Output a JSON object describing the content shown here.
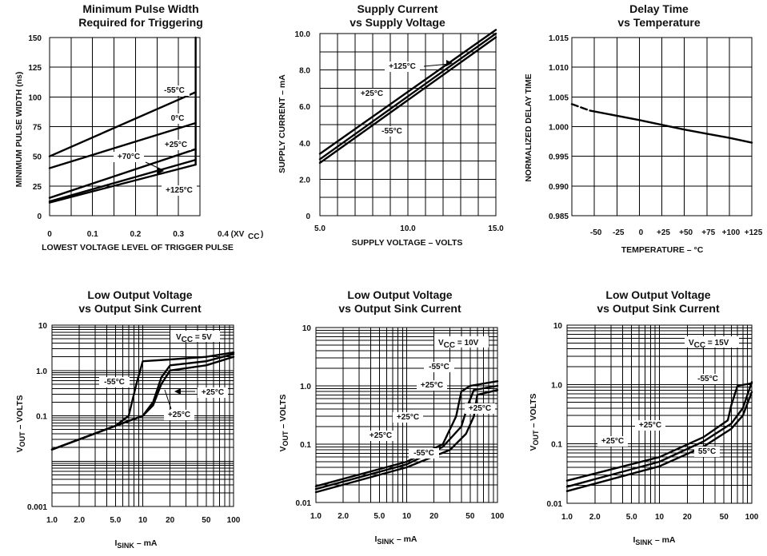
{
  "chart_data": [
    {
      "type": "line",
      "title": "Minimum Pulse Width\nRequired for Triggering",
      "xlabel": "LOWEST VOLTAGE LEVEL OF TRIGGER PULSE",
      "ylabel": "MINIMUM PULSE WIDTH (ns)",
      "xlim": [
        0,
        0.35
      ],
      "ylim": [
        0,
        150
      ],
      "x_ticks": [
        "0",
        "0.1",
        "0.2",
        "0.3",
        "0.4 (XVCC)"
      ],
      "y_ticks": [
        "0",
        "25",
        "50",
        "75",
        "100",
        "125",
        "150"
      ],
      "grid": true,
      "series": [
        {
          "name": "-55°C",
          "x": [
            0,
            0.34
          ],
          "y": [
            50,
            104
          ]
        },
        {
          "name": "0°C",
          "x": [
            0,
            0.34
          ],
          "y": [
            40,
            78
          ]
        },
        {
          "name": "+25°C",
          "x": [
            0,
            0.34
          ],
          "y": [
            15,
            56
          ]
        },
        {
          "name": "+70°C",
          "x": [
            0,
            0.34
          ],
          "y": [
            12,
            47
          ]
        },
        {
          "name": "+125°C",
          "x": [
            0,
            0.34
          ],
          "y": [
            11,
            43
          ]
        }
      ],
      "annotations": [
        "-55°C",
        "0°C",
        "+25°C",
        "+70°C",
        "+125°C"
      ]
    },
    {
      "type": "line",
      "title": "Supply Current\nvs Supply Voltage",
      "xlabel": "SUPPLY VOLTAGE – VOLTS",
      "ylabel": "SUPPLY CURRENT – mA",
      "xlim": [
        5,
        15
      ],
      "ylim": [
        0,
        10
      ],
      "x_ticks": [
        "5.0",
        "10.0",
        "15.0"
      ],
      "y_ticks": [
        "0",
        "2.0",
        "4.0",
        "6.0",
        "8.0",
        "10.0"
      ],
      "grid": true,
      "series": [
        {
          "name": "+125°C",
          "x": [
            5,
            15
          ],
          "y": [
            2.9,
            9.8
          ]
        },
        {
          "name": "+25°C",
          "x": [
            5,
            15
          ],
          "y": [
            3.1,
            10.0
          ]
        },
        {
          "name": "-55°C",
          "x": [
            5,
            15
          ],
          "y": [
            3.4,
            10.2
          ]
        }
      ],
      "annotations": [
        "+125°C",
        "+25°C",
        "-55°C"
      ]
    },
    {
      "type": "line",
      "title": "Delay Time\nvs Temperature",
      "xlabel": "TEMPERATURE – °C",
      "ylabel": "NORMALIZED DELAY TIME",
      "xlim": [
        -75,
        125
      ],
      "ylim": [
        0.985,
        1.015
      ],
      "x_ticks": [
        "-50",
        "-25",
        "0",
        "+25",
        "+50",
        "+75",
        "+100",
        "+125"
      ],
      "y_ticks": [
        "0.985",
        "0.990",
        "0.995",
        "1.000",
        "1.005",
        "1.010",
        "1.015"
      ],
      "grid": true,
      "series": [
        {
          "name": "",
          "x": [
            -75,
            -55,
            0,
            50,
            75,
            100,
            125
          ],
          "y": [
            1.0038,
            1.0027,
            1.0011,
            0.9995,
            0.9988,
            0.9981,
            0.9973
          ]
        }
      ]
    },
    {
      "type": "line",
      "title": "Low Output Voltage\nvs Output Sink Current",
      "xlabel": "ISINK – mA",
      "ylabel": "VOUT – VOLTS",
      "xscale": "log",
      "yscale": "log",
      "xlim": [
        1,
        100
      ],
      "ylim": [
        0.001,
        10
      ],
      "x_ticks": [
        "1.0",
        "2.0",
        "5.0",
        "10",
        "20",
        "50",
        "100"
      ],
      "y_ticks": [
        "0.001",
        "0.1",
        "1.0",
        "10"
      ],
      "grid": true,
      "annotations": [
        "VCC = 5V",
        "-55°C",
        "+25°C",
        "+25°C"
      ],
      "series": [
        {
          "name": "-55°C",
          "x": [
            1,
            5,
            7,
            8.5,
            10,
            20,
            50,
            100
          ],
          "y": [
            0.018,
            0.06,
            0.1,
            0.5,
            1.6,
            1.75,
            2.0,
            2.5
          ]
        },
        {
          "name": "+25°C",
          "x": [
            1,
            5,
            10,
            13,
            16,
            20,
            50,
            100
          ],
          "y": [
            0.018,
            0.06,
            0.1,
            0.2,
            0.7,
            1.3,
            1.6,
            2.3
          ]
        },
        {
          "name": "+25°C",
          "x": [
            1,
            5,
            10,
            13,
            16,
            20,
            50,
            100
          ],
          "y": [
            0.018,
            0.06,
            0.1,
            0.17,
            0.5,
            1.0,
            1.3,
            2.0
          ]
        }
      ]
    },
    {
      "type": "line",
      "title": "Low Output Voltage\nvs Output Sink Current",
      "xlabel": "ISINK – mA",
      "ylabel": "VOUT – VOLTS",
      "xscale": "log",
      "yscale": "log",
      "xlim": [
        1,
        100
      ],
      "ylim": [
        0.01,
        10
      ],
      "x_ticks": [
        "1.0",
        "2.0",
        "5.0",
        "10",
        "20",
        "50",
        "100"
      ],
      "y_ticks": [
        "0.01",
        "0.1",
        "1.0",
        "10"
      ],
      "grid": true,
      "annotations": [
        "VCC = 10V",
        "-55°C",
        "+25°C",
        "+25°C",
        "+25°C",
        "+25°C",
        "-55°C"
      ],
      "series": [
        {
          "name": "-55°C",
          "x": [
            1,
            10,
            25,
            35,
            40,
            50,
            100
          ],
          "y": [
            0.019,
            0.05,
            0.1,
            0.3,
            0.8,
            1.0,
            1.2
          ]
        },
        {
          "name": "+25°C",
          "x": [
            1,
            10,
            25,
            40,
            48,
            55,
            100
          ],
          "y": [
            0.017,
            0.045,
            0.09,
            0.2,
            0.5,
            0.85,
            1.0
          ]
        },
        {
          "name": "+25°C",
          "x": [
            1,
            10,
            30,
            45,
            55,
            60,
            100
          ],
          "y": [
            0.015,
            0.04,
            0.08,
            0.15,
            0.3,
            0.7,
            0.85
          ]
        }
      ]
    },
    {
      "type": "line",
      "title": "Low Output Voltage\nvs Output Sink Current",
      "xlabel": "ISINK – mA",
      "ylabel": "VOUT – VOLTS",
      "xscale": "log",
      "yscale": "log",
      "xlim": [
        1,
        100
      ],
      "ylim": [
        0.01,
        10
      ],
      "x_ticks": [
        "1.0",
        "2.0",
        "5.0",
        "10",
        "20",
        "50",
        "100"
      ],
      "y_ticks": [
        "0.01",
        "0.1",
        "1.0",
        "10"
      ],
      "grid": true,
      "annotations": [
        "VCC = 15V",
        "-55°C",
        "+25°C",
        "+25°C",
        "55°C"
      ],
      "series": [
        {
          "name": "-55°C",
          "x": [
            1,
            10,
            30,
            55,
            60,
            70,
            100
          ],
          "y": [
            0.024,
            0.06,
            0.13,
            0.25,
            0.45,
            0.95,
            1.05
          ]
        },
        {
          "name": "+25°C",
          "x": [
            1,
            10,
            30,
            60,
            80,
            100
          ],
          "y": [
            0.019,
            0.05,
            0.11,
            0.22,
            0.4,
            1.1
          ]
        },
        {
          "name": "55°C",
          "x": [
            1,
            10,
            30,
            60,
            80,
            100
          ],
          "y": [
            0.016,
            0.042,
            0.09,
            0.18,
            0.3,
            0.75
          ]
        }
      ]
    }
  ]
}
